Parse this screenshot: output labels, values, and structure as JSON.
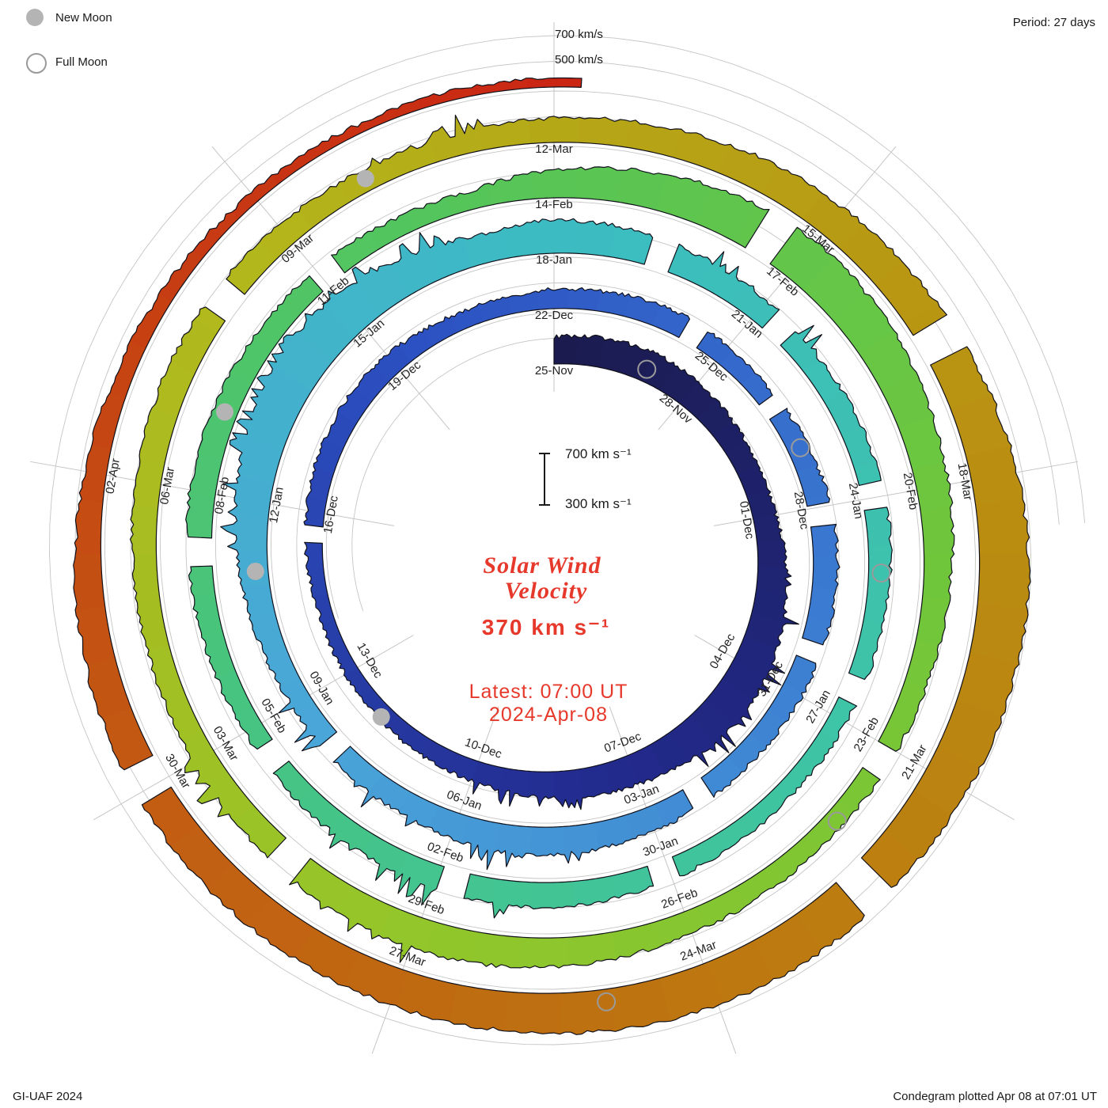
{
  "legend": {
    "new_moon": "New Moon",
    "full_moon": "Full Moon"
  },
  "header": {
    "period": "Period: 27 days"
  },
  "footer": {
    "left": "GI-UAF 2024",
    "right": "Condegram plotted Apr 08 at 07:01 UT"
  },
  "scale": {
    "outer_700": "700 km/s",
    "outer_500": "500 km/s",
    "bar_top": "700 km s⁻¹",
    "bar_bottom": "300 km s⁻¹"
  },
  "center": {
    "title1": "Solar Wind",
    "title2": "Velocity",
    "value": "370 km s⁻¹",
    "latest1": "Latest: 07:00 UT",
    "latest2": "2024-Apr-08"
  },
  "colors": {
    "annotation_red": "#e6392b",
    "grid_gray": "#c5c5c5",
    "edge_black": "#10101a",
    "new_moon_gray": "#b4b4b4",
    "full_moon_gray": "#9a9a9a"
  },
  "chart_data": {
    "type": "area",
    "subtype": "condegram-spiral",
    "title": "Solar Wind Velocity",
    "start_date": "2023-11-25",
    "end_date": "2024-04-08",
    "end_day": 135.29,
    "period_days": 27,
    "baseline_kms": 300,
    "grid_levels_kms": [
      500,
      700
    ],
    "scale_bar_kms": [
      300,
      700
    ],
    "latest_value_kms": 370,
    "daily_velocity_kms": [
      510,
      530,
      540,
      520,
      490,
      470,
      480,
      520,
      560,
      590,
      600,
      570,
      540,
      520,
      490,
      460,
      440,
      420,
      410,
      400,
      420,
      440,
      460,
      470,
      460,
      440,
      430,
      450,
      460,
      470,
      450,
      440,
      460,
      480,
      490,
      480,
      470,
      460,
      470,
      490,
      510,
      520,
      500,
      480,
      470,
      460,
      480,
      520,
      570,
      620,
      660,
      640,
      580,
      520,
      560,
      540,
      510,
      480,
      460,
      470,
      480,
      470,
      450,
      440,
      430,
      440,
      460,
      480,
      500,
      490,
      470,
      460,
      450,
      460,
      480,
      500,
      490,
      470,
      460,
      450,
      440,
      520,
      570,
      630,
      650,
      630,
      590,
      550,
      510,
      480,
      460,
      450,
      460,
      480,
      510,
      540,
      550,
      530,
      500,
      480,
      470,
      480,
      500,
      510,
      500,
      480,
      470,
      460,
      490,
      510,
      540,
      560,
      580,
      620,
      660,
      690,
      680,
      660,
      640,
      650,
      640,
      620,
      600,
      590,
      580,
      570,
      560,
      540,
      510,
      470,
      430,
      400,
      380,
      370,
      370,
      370
    ],
    "gaps_days": [
      [
        20.5,
        20.75
      ],
      [
        29.3,
        29.6
      ],
      [
        31.1,
        31.35
      ],
      [
        33.0,
        33.3
      ],
      [
        35.2,
        35.45
      ],
      [
        38.0,
        38.3
      ],
      [
        44.0,
        44.25
      ],
      [
        55.3,
        55.6
      ],
      [
        57.2,
        57.5
      ],
      [
        59.8,
        60.1
      ],
      [
        62.4,
        62.7
      ],
      [
        65.9,
        66.2
      ],
      [
        68.6,
        68.9
      ],
      [
        71.4,
        71.7
      ],
      [
        74.1,
        74.4
      ],
      [
        77.9,
        78.2
      ],
      [
        83.4,
        83.7
      ],
      [
        90.0,
        90.3
      ],
      [
        97.4,
        97.7
      ],
      [
        103.9,
        104.2
      ],
      [
        112.4,
        112.7
      ],
      [
        118.1,
        118.4
      ],
      [
        125.9,
        126.2
      ]
    ],
    "spike_ranges_days": [
      [
        7,
        11
      ],
      [
        13,
        15
      ],
      [
        40,
        45
      ],
      [
        47,
        52.5
      ],
      [
        56,
        58
      ],
      [
        68,
        71
      ],
      [
        96,
        99
      ],
      [
        106,
        107.5
      ]
    ],
    "tick_interval_days": 3,
    "tick_labels": [
      "25-Nov",
      "28-Nov",
      "01-Dec",
      "04-Dec",
      "07-Dec",
      "10-Dec",
      "13-Dec",
      "16-Dec",
      "19-Dec",
      "22-Dec",
      "25-Dec",
      "28-Dec",
      "31-Dec",
      "03-Jan",
      "06-Jan",
      "09-Jan",
      "12-Jan",
      "15-Jan",
      "18-Jan",
      "21-Jan",
      "24-Jan",
      "27-Jan",
      "30-Jan",
      "02-Feb",
      "05-Feb",
      "08-Feb",
      "11-Feb",
      "14-Feb",
      "17-Feb",
      "20-Feb",
      "23-Feb",
      "26-Feb",
      "29-Feb",
      "03-Mar",
      "06-Mar",
      "09-Mar",
      "12-Mar",
      "15-Mar",
      "18-Mar",
      "21-Mar",
      "24-Mar",
      "27-Mar",
      "30-Mar",
      "02-Apr"
    ],
    "new_moon_days": [
      17,
      47,
      76,
      106
    ],
    "full_moon_days": [
      2,
      32,
      61,
      91,
      121
    ],
    "colormap": [
      [
        0.0,
        "#1b1b4e"
      ],
      [
        0.09,
        "#222a8c"
      ],
      [
        0.18,
        "#2c50c2"
      ],
      [
        0.26,
        "#3c7ed2"
      ],
      [
        0.33,
        "#4aa6d8"
      ],
      [
        0.4,
        "#3cbcc2"
      ],
      [
        0.47,
        "#3ec4a4"
      ],
      [
        0.53,
        "#46c484"
      ],
      [
        0.59,
        "#55c55a"
      ],
      [
        0.65,
        "#70c63a"
      ],
      [
        0.71,
        "#93c62a"
      ],
      [
        0.77,
        "#b2b81c"
      ],
      [
        0.83,
        "#b99612"
      ],
      [
        0.88,
        "#bc7b10"
      ],
      [
        0.93,
        "#c25c12"
      ],
      [
        1.0,
        "#cb2413"
      ]
    ]
  }
}
